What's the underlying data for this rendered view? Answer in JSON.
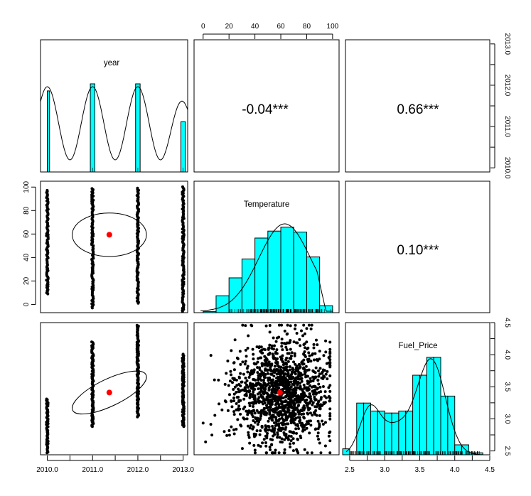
{
  "chart_data": {
    "type": "scatter",
    "variables": [
      "year",
      "Temperature",
      "Fuel_Price"
    ],
    "colors": {
      "histogram_fill": "#00ffff",
      "outline": "#000000",
      "points": "#000000",
      "mean_point": "#ff0000"
    },
    "axes": {
      "year": {
        "ticks": [
          "2010.0",
          "2011.0",
          "2012.0",
          "2013.0"
        ],
        "tick_values": [
          2010,
          2011,
          2012,
          2013
        ],
        "range": [
          2009.85,
          2013.1
        ]
      },
      "Temperature": {
        "ticks": [
          "0",
          "20",
          "40",
          "60",
          "80",
          "100"
        ],
        "tick_values": [
          0,
          20,
          40,
          60,
          80,
          100
        ],
        "range": [
          -7,
          105
        ]
      },
      "Fuel_Price": {
        "ticks": [
          "2.5",
          "3.0",
          "3.5",
          "4.0",
          "4.5"
        ],
        "tick_values": [
          2.5,
          3.0,
          3.5,
          4.0,
          4.5
        ],
        "range": [
          2.44,
          4.5
        ]
      }
    },
    "correlations": [
      {
        "pair": [
          "year",
          "Temperature"
        ],
        "label": "-0.04***"
      },
      {
        "pair": [
          "year",
          "Fuel_Price"
        ],
        "label": "0.66***"
      },
      {
        "pair": [
          "Temperature",
          "Fuel_Price"
        ],
        "label": "0.10***"
      }
    ],
    "histograms": {
      "year": {
        "bins": [
          [
            2010.0,
            2010.05
          ],
          [
            2010.95,
            2011.05
          ],
          [
            2011.95,
            2012.05
          ],
          [
            2012.95,
            2013.05
          ]
        ],
        "heights": [
          0.92,
          1.0,
          1.0,
          0.57
        ]
      },
      "Temperature": {
        "bins": [
          [
            0,
            10
          ],
          [
            10,
            20
          ],
          [
            20,
            30
          ],
          [
            30,
            40
          ],
          [
            40,
            50
          ],
          [
            50,
            60
          ],
          [
            60,
            70
          ],
          [
            70,
            80
          ],
          [
            80,
            90
          ],
          [
            90,
            100
          ]
        ],
        "heights": [
          0.01,
          0.17,
          0.35,
          0.54,
          0.75,
          0.82,
          0.86,
          0.81,
          0.56,
          0.07
        ]
      },
      "Fuel_Price": {
        "bins": [
          [
            2.4,
            2.5
          ],
          [
            2.5,
            2.6
          ],
          [
            2.6,
            2.7
          ],
          [
            2.7,
            2.8
          ],
          [
            2.8,
            2.9
          ],
          [
            2.9,
            3.0
          ],
          [
            3.0,
            3.1
          ],
          [
            3.1,
            3.2
          ],
          [
            3.2,
            3.3
          ],
          [
            3.3,
            3.4
          ],
          [
            3.4,
            3.5
          ],
          [
            3.5,
            3.6
          ],
          [
            3.6,
            3.7
          ],
          [
            3.7,
            3.8
          ],
          [
            3.8,
            3.9
          ],
          [
            3.9,
            4.0
          ],
          [
            4.0,
            4.1
          ],
          [
            4.1,
            4.2
          ],
          [
            4.2,
            4.3
          ],
          [
            4.3,
            4.4
          ],
          [
            4.4,
            4.5
          ]
        ],
        "heights": [
          0.06,
          0.0,
          0.52,
          0.52,
          0.44,
          0.44,
          0.42,
          0.42,
          0.44,
          0.44,
          0.8,
          0.8,
          0.98,
          0.98,
          0.59,
          0.59,
          0.1,
          0.1,
          0.02,
          0.02,
          0.0
        ]
      }
    },
    "means": {
      "year": 2011.37,
      "Temperature": 59.4,
      "Fuel_Price": 3.41
    },
    "ellipses": {
      "year_Temperature": {
        "center": [
          2011.37,
          59.4
        ],
        "rx": 0.82,
        "ry": 18.5,
        "tilt": 0
      },
      "year_Fuel_Price": {
        "center": [
          2011.37,
          3.41
        ],
        "rx": 0.9,
        "ry": 0.21,
        "tilt": -0.45
      }
    },
    "strips": {
      "year_Temperature": [
        {
          "year": 2010,
          "from": 9,
          "to": 98
        },
        {
          "year": 2011,
          "from": -3,
          "to": 99
        },
        {
          "year": 2012,
          "from": 1,
          "to": 100
        },
        {
          "year": 2013,
          "from": -6,
          "to": 101
        }
      ],
      "year_Fuel_Price": [
        {
          "year": 2010,
          "from": 2.47,
          "to": 3.32
        },
        {
          "year": 2011,
          "from": 2.88,
          "to": 4.21
        },
        {
          "year": 2012,
          "from": 3.03,
          "to": 4.46
        },
        {
          "year": 2013,
          "from": 2.88,
          "to": 4.01
        }
      ]
    },
    "scatter_cloud": {
      "x_range": [
        0,
        98
      ],
      "y_range": [
        2.47,
        4.46
      ]
    }
  }
}
